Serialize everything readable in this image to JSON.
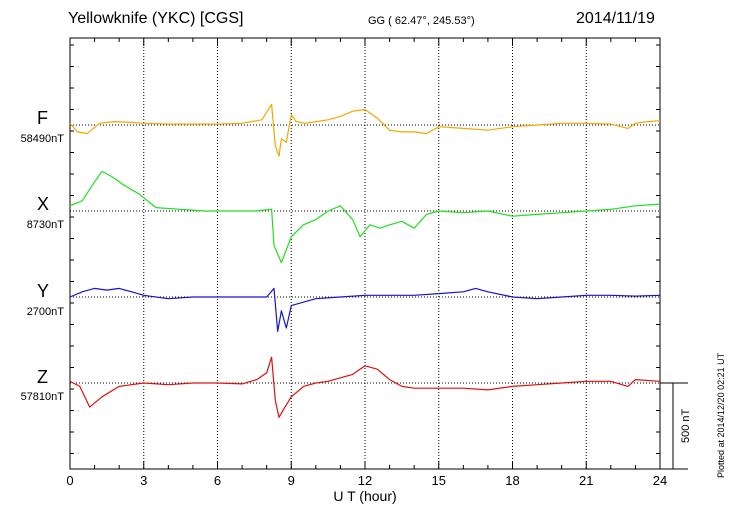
{
  "header": {
    "station": "Yellowknife (YKC)  [CGS]",
    "coords": "GG ( 62.47°, 245.53°)",
    "date": "2014/11/19"
  },
  "plotted_note": "Plotted at 2014/12/20 02:21  UT",
  "scale_label": "500 nT",
  "chart_data": {
    "type": "line",
    "xlabel": "U T (hour)",
    "xlim": [
      0,
      24
    ],
    "xticks": [
      "0",
      "3",
      "6",
      "9",
      "12",
      "15",
      "18",
      "21",
      "24"
    ],
    "grid": true,
    "scale_bar_nT": 500,
    "series": [
      {
        "name": "F",
        "baseline": "58490nT",
        "color": "#f0a800",
        "x": [
          0,
          0.3,
          0.7,
          1.2,
          1.8,
          2.5,
          3,
          4,
          5,
          6,
          7,
          7.8,
          8.2,
          8.35,
          8.5,
          8.6,
          8.8,
          9.0,
          9.2,
          9.6,
          10,
          10.5,
          11,
          11.5,
          12,
          12.5,
          13,
          13.5,
          14,
          14.5,
          15,
          16,
          17,
          18,
          19,
          20,
          21,
          22,
          22.7,
          23,
          23.5,
          24
        ],
        "values": [
          10,
          -40,
          -50,
          10,
          20,
          15,
          10,
          5,
          5,
          5,
          10,
          30,
          120,
          -120,
          -180,
          -80,
          -100,
          60,
          20,
          10,
          20,
          30,
          50,
          80,
          90,
          40,
          -30,
          -40,
          -40,
          -50,
          -10,
          -20,
          -30,
          -10,
          0,
          10,
          10,
          5,
          -20,
          10,
          20,
          25
        ]
      },
      {
        "name": "X",
        "baseline": "8730nT",
        "color": "#22dd22",
        "x": [
          0,
          0.5,
          1,
          1.3,
          1.7,
          2.2,
          2.8,
          3.5,
          4.5,
          5.5,
          6.5,
          7.5,
          8.2,
          8.3,
          8.6,
          9.0,
          9.5,
          10,
          10.5,
          11,
          11.5,
          11.8,
          12.2,
          12.6,
          13,
          13.5,
          14,
          14.5,
          15,
          16,
          17,
          18,
          19,
          20,
          21,
          22,
          23,
          24
        ],
        "values": [
          30,
          60,
          170,
          230,
          200,
          150,
          100,
          20,
          10,
          0,
          0,
          0,
          10,
          -200,
          -300,
          -150,
          -80,
          -50,
          0,
          30,
          -50,
          -150,
          -80,
          -100,
          -80,
          -60,
          -100,
          -20,
          0,
          -10,
          0,
          -30,
          -20,
          -10,
          0,
          10,
          30,
          40
        ]
      },
      {
        "name": "Y",
        "baseline": "2700nT",
        "color": "#1414cc",
        "x": [
          0,
          0.5,
          1,
          1.5,
          2,
          2.5,
          3,
          4,
          5,
          6,
          7,
          8,
          8.3,
          8.45,
          8.6,
          8.8,
          9,
          10,
          11,
          12,
          13,
          14,
          15,
          16,
          16.5,
          17,
          18,
          19,
          20,
          21,
          22,
          23,
          24
        ],
        "values": [
          0,
          30,
          50,
          40,
          50,
          30,
          10,
          -10,
          0,
          0,
          0,
          0,
          50,
          -200,
          -80,
          -180,
          -50,
          -10,
          0,
          10,
          10,
          10,
          20,
          30,
          50,
          30,
          0,
          -10,
          0,
          10,
          10,
          5,
          10
        ]
      },
      {
        "name": "Z",
        "baseline": "57810nT",
        "color": "#e01010",
        "x": [
          0,
          0.4,
          0.8,
          1.3,
          2,
          3,
          4,
          5,
          6,
          7,
          7.6,
          8,
          8.2,
          8.35,
          8.5,
          8.7,
          9.0,
          9.5,
          10,
          10.5,
          11,
          11.5,
          12,
          12.5,
          13,
          13.5,
          14,
          15,
          16,
          17,
          18,
          19,
          20,
          21,
          22,
          22.7,
          23,
          24
        ],
        "values": [
          10,
          -20,
          -140,
          -80,
          -20,
          0,
          -10,
          0,
          0,
          -5,
          20,
          60,
          150,
          -100,
          -200,
          -150,
          -80,
          -20,
          0,
          10,
          30,
          50,
          100,
          80,
          20,
          -20,
          -30,
          -30,
          -30,
          -40,
          -20,
          -10,
          0,
          10,
          10,
          -20,
          20,
          10
        ]
      }
    ]
  }
}
